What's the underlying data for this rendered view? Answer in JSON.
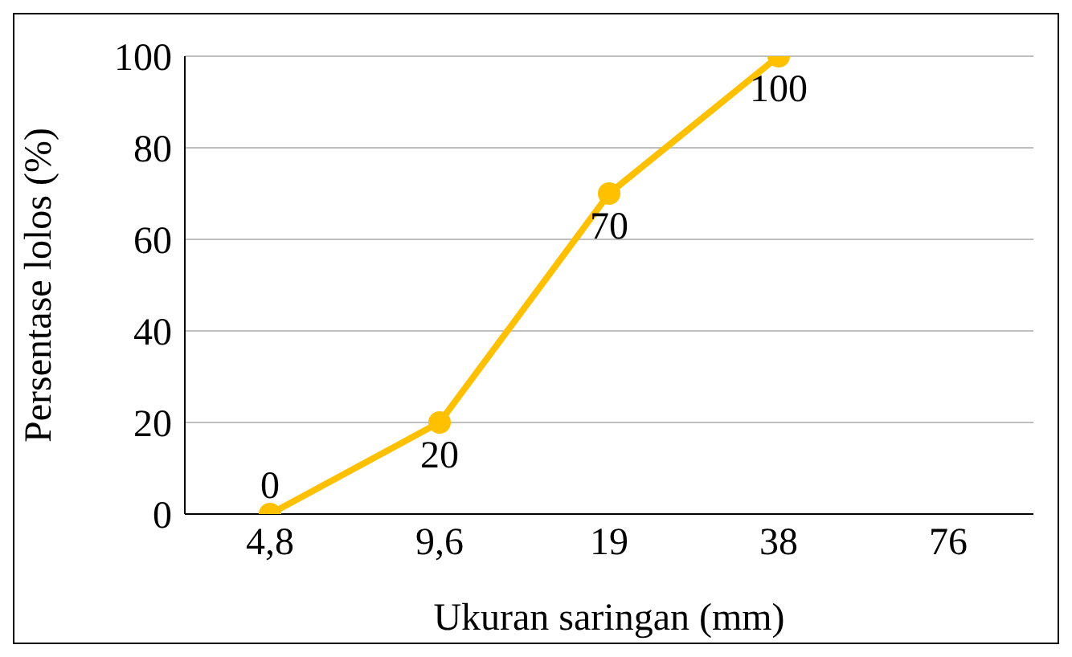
{
  "chart_data": {
    "type": "line",
    "xlabel": "Ukuran saringan (mm)",
    "ylabel": "Persentase lolos (%)",
    "categories": [
      "4,8",
      "9,6",
      "19",
      "38",
      "76"
    ],
    "series": [
      {
        "color": "#ffc000",
        "values": [
          0,
          20,
          70,
          100,
          null
        ]
      }
    ],
    "ylim": [
      0,
      100
    ],
    "yticks": [
      0,
      20,
      40,
      60,
      80,
      100
    ],
    "grid": "y",
    "marker": "circle",
    "data_labels": true,
    "legend": false
  }
}
